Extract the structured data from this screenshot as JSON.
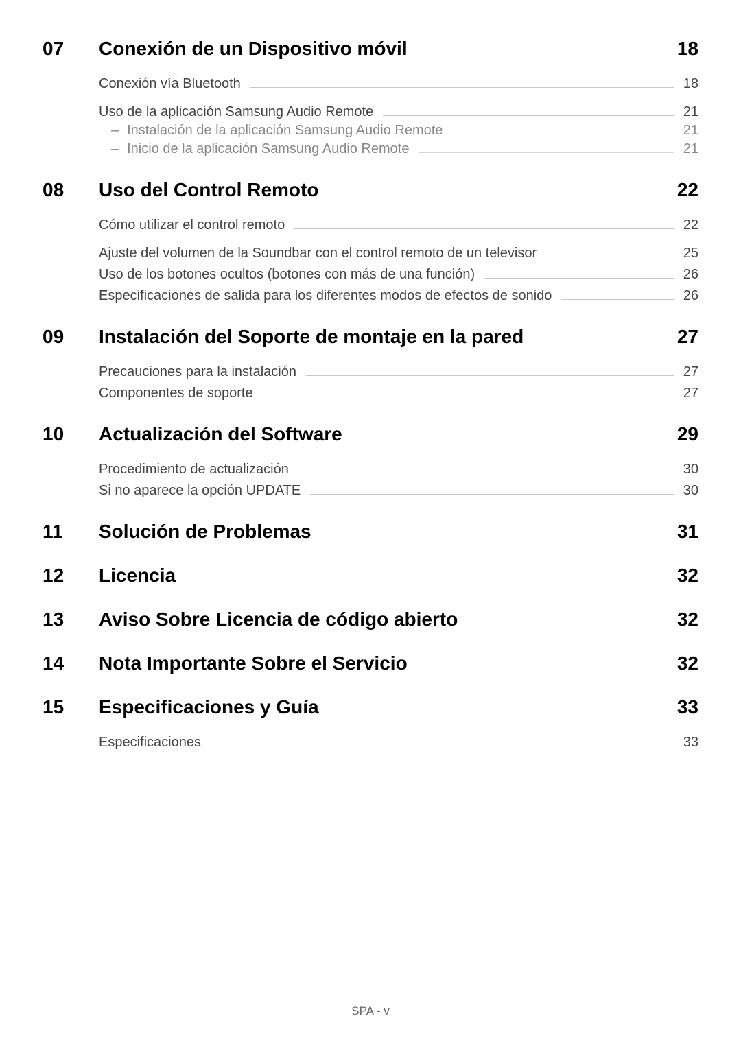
{
  "footer": "SPA - v",
  "sections": [
    {
      "number": "07",
      "title": "Conexión de un Dispositivo móvil",
      "page": "18",
      "groups": [
        {
          "entries": [
            {
              "label": "Conexión vía Bluetooth",
              "page": "18"
            }
          ]
        },
        {
          "entries": [
            {
              "label": "Uso de la aplicación Samsung Audio Remote",
              "page": "21",
              "subs": [
                {
                  "label": "Instalación de la aplicación Samsung Audio Remote",
                  "page": "21"
                },
                {
                  "label": "Inicio de la aplicación Samsung Audio Remote",
                  "page": "21"
                }
              ]
            }
          ]
        }
      ]
    },
    {
      "number": "08",
      "title": "Uso del Control Remoto",
      "page": "22",
      "groups": [
        {
          "entries": [
            {
              "label": "Cómo utilizar el control remoto",
              "page": "22"
            }
          ]
        },
        {
          "entries": [
            {
              "label": "Ajuste del volumen de la Soundbar con el control remoto de un televisor",
              "page": "25"
            },
            {
              "label": "Uso de los botones ocultos (botones con más de una función)",
              "page": "26"
            },
            {
              "label": "Especificaciones de salida para los diferentes modos de efectos de sonido",
              "page": "26"
            }
          ]
        }
      ]
    },
    {
      "number": "09",
      "title": "Instalación del Soporte de montaje en la pared",
      "page": "27",
      "groups": [
        {
          "entries": [
            {
              "label": "Precauciones para la instalación",
              "page": "27"
            },
            {
              "label": "Componentes de soporte",
              "page": "27"
            }
          ]
        }
      ]
    },
    {
      "number": "10",
      "title": "Actualización del Software",
      "page": "29",
      "groups": [
        {
          "entries": [
            {
              "label": "Procedimiento de actualización",
              "page": "30"
            },
            {
              "label": "Si no aparece la opción UPDATE",
              "page": "30"
            }
          ]
        }
      ]
    },
    {
      "number": "11",
      "title": "Solución de Problemas",
      "page": "31",
      "groups": []
    },
    {
      "number": "12",
      "title": "Licencia",
      "page": "32",
      "groups": []
    },
    {
      "number": "13",
      "title": "Aviso Sobre Licencia de código abierto",
      "page": "32",
      "groups": []
    },
    {
      "number": "14",
      "title": "Nota Importante Sobre el Servicio",
      "page": "32",
      "groups": []
    },
    {
      "number": "15",
      "title": "Especificaciones y Guía",
      "page": "33",
      "groups": [
        {
          "entries": [
            {
              "label": "Especificaciones",
              "page": "33"
            }
          ]
        }
      ]
    }
  ]
}
